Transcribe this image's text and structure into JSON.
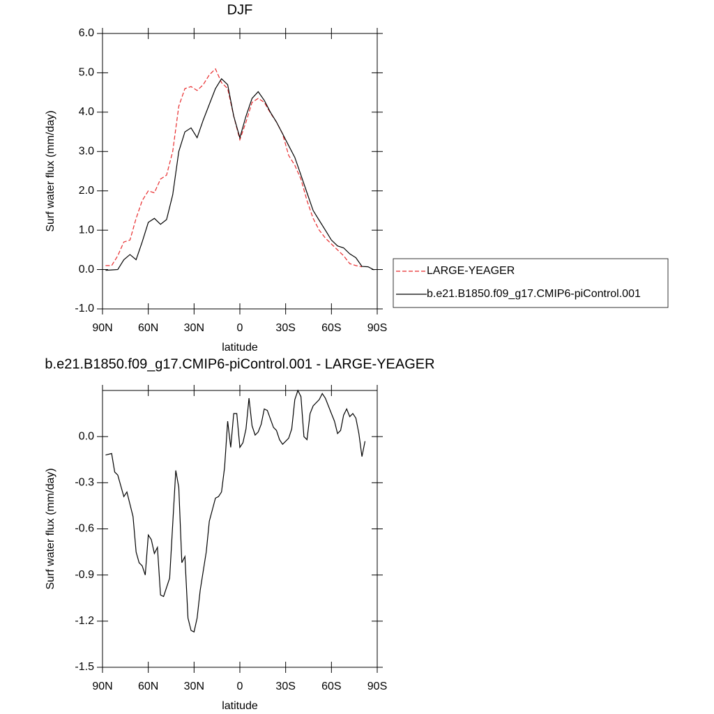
{
  "chart_data": [
    {
      "type": "line",
      "title": "DJF",
      "xlabel": "latitude",
      "ylabel": "Surf water flux (mm/day)",
      "xlim": [
        90,
        -90
      ],
      "xticks": [
        {
          "value": 90,
          "label": "90N"
        },
        {
          "value": 60,
          "label": "60N"
        },
        {
          "value": 30,
          "label": "30N"
        },
        0,
        {
          "value": -30,
          "label": "30S"
        },
        {
          "value": -60,
          "label": "60S"
        },
        {
          "value": -90,
          "label": "90S"
        }
      ],
      "ylim": [
        -1.0,
        6.0
      ],
      "yticks": [
        {
          "value": -1,
          "label": "-1.0"
        },
        {
          "value": 0,
          "label": "0.0"
        },
        {
          "value": 1,
          "label": "1.0"
        },
        {
          "value": 2,
          "label": "2.0"
        },
        {
          "value": 3,
          "label": "3.0"
        },
        {
          "value": 4,
          "label": "4.0"
        },
        {
          "value": 5,
          "label": "5.0"
        },
        {
          "value": 6,
          "label": "6.0"
        }
      ],
      "legend": "right",
      "x": [
        88,
        84,
        80,
        76,
        72,
        68,
        64,
        60,
        56,
        52,
        48,
        44,
        40,
        36,
        32,
        28,
        24,
        20,
        16,
        12,
        8,
        4,
        0,
        -4,
        -8,
        -12,
        -16,
        -20,
        -24,
        -28,
        -32,
        -36,
        -40,
        -44,
        -48,
        -52,
        -56,
        -60,
        -64,
        -68,
        -72,
        -76,
        -80,
        -84,
        -88
      ],
      "series": [
        {
          "name": "LARGE-YEAGER",
          "color": "#e8292b",
          "dashed": true,
          "values": [
            0.1,
            0.1,
            0.35,
            0.7,
            0.75,
            1.3,
            1.75,
            2.0,
            1.95,
            2.3,
            2.4,
            3.0,
            4.15,
            4.6,
            4.65,
            4.55,
            4.7,
            4.95,
            5.1,
            4.75,
            4.6,
            3.9,
            3.3,
            3.75,
            4.25,
            4.35,
            4.25,
            3.98,
            3.75,
            3.45,
            2.9,
            2.65,
            2.3,
            1.75,
            1.3,
            1.0,
            0.8,
            0.65,
            0.5,
            0.35,
            0.15,
            0.1,
            0.07,
            null,
            null
          ]
        },
        {
          "name": "b.e21.B1850.f09_g17.CMIP6-piControl.001",
          "color": "#000000",
          "dashed": false,
          "values": [
            -0.02,
            -0.01,
            0.0,
            0.25,
            0.38,
            0.25,
            0.7,
            1.2,
            1.3,
            1.15,
            1.27,
            1.9,
            3.0,
            3.5,
            3.6,
            3.35,
            3.8,
            4.2,
            4.6,
            4.85,
            4.7,
            3.9,
            3.35,
            3.9,
            4.35,
            4.52,
            4.3,
            4.0,
            3.75,
            3.45,
            3.15,
            2.85,
            2.4,
            1.95,
            1.5,
            1.25,
            1.0,
            0.75,
            0.6,
            0.55,
            0.4,
            0.3,
            0.08,
            0.07,
            -0.01
          ]
        }
      ]
    },
    {
      "type": "line",
      "title": "b.e21.B1850.f09_g17.CMIP6-piControl.001 - LARGE-YEAGER",
      "xlabel": "latitude",
      "ylabel": "Surf water flux (mm/day)",
      "xlim": [
        90,
        -90
      ],
      "xticks": [
        {
          "value": 90,
          "label": "90N"
        },
        {
          "value": 60,
          "label": "60N"
        },
        {
          "value": 30,
          "label": "30N"
        },
        0,
        {
          "value": -30,
          "label": "30S"
        },
        {
          "value": -60,
          "label": "60S"
        },
        {
          "value": -90,
          "label": "90S"
        }
      ],
      "ylim": [
        -1.5,
        0.3
      ],
      "yticks": [
        -1.5,
        -1.2,
        -0.9,
        -0.6,
        -0.3,
        {
          "value": 0,
          "label": "0.0"
        }
      ],
      "x": [
        88,
        84,
        82,
        80,
        76,
        74,
        70,
        68,
        66,
        64,
        62,
        60,
        58,
        56,
        54,
        52,
        50,
        46,
        42,
        40,
        38,
        36,
        34,
        32,
        30,
        28,
        26,
        22,
        20,
        16,
        14,
        12,
        10,
        8,
        6,
        4,
        2,
        0,
        -2,
        -4,
        -6,
        -8,
        -10,
        -12,
        -14,
        -16,
        -18,
        -22,
        -24,
        -26,
        -28,
        -30,
        -32,
        -34,
        -36,
        -38,
        -40,
        -42,
        -44,
        -46,
        -48,
        -52,
        -54,
        -56,
        -60,
        -62,
        -64,
        -66,
        -68,
        -70,
        -72,
        -74,
        -76,
        -78,
        -80,
        -82
      ],
      "series": [
        {
          "color": "#000000",
          "dashed": false,
          "values": [
            -0.12,
            -0.11,
            -0.23,
            -0.25,
            -0.39,
            -0.36,
            -0.52,
            -0.75,
            -0.82,
            -0.84,
            -0.9,
            -0.64,
            -0.67,
            -0.76,
            -0.72,
            -1.03,
            -1.04,
            -0.92,
            -0.22,
            -0.33,
            -0.82,
            -0.78,
            -1.18,
            -1.26,
            -1.27,
            -1.18,
            -1.0,
            -0.75,
            -0.55,
            -0.4,
            -0.39,
            -0.36,
            -0.2,
            0.1,
            -0.07,
            0.15,
            0.15,
            -0.07,
            -0.04,
            0.05,
            0.25,
            0.07,
            0.01,
            0.03,
            0.08,
            0.18,
            0.17,
            0.06,
            0.04,
            -0.02,
            -0.05,
            -0.03,
            -0.01,
            0.05,
            0.24,
            0.3,
            0.26,
            0.0,
            -0.02,
            0.15,
            0.2,
            0.24,
            0.28,
            0.25,
            0.15,
            0.1,
            0.02,
            0.04,
            0.14,
            0.18,
            0.13,
            0.15,
            0.12,
            0.02,
            -0.13,
            -0.03
          ]
        }
      ]
    }
  ]
}
